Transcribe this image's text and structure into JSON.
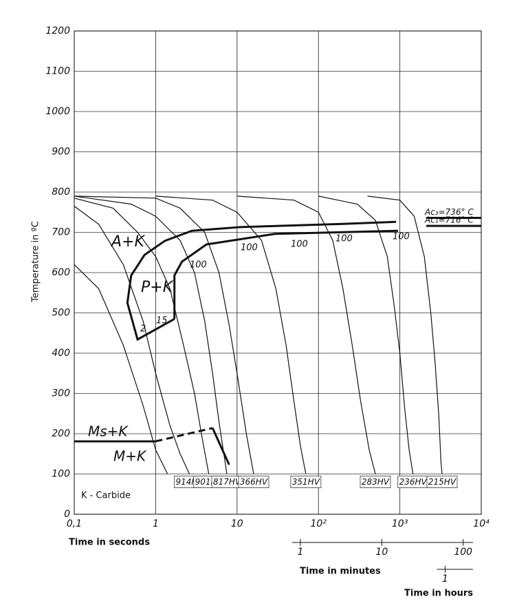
{
  "chart_data": {
    "type": "line",
    "ylabel": "Temperature in ºC",
    "xlabel": "Time in seconds",
    "log_x": true,
    "grid": true,
    "xlim": [
      0.1,
      10000
    ],
    "ylim": [
      0,
      1200
    ],
    "xticks": [
      {
        "value": 0.1,
        "label": "0,1"
      },
      1,
      10,
      {
        "value": 100,
        "label": "10²"
      },
      {
        "value": 1000,
        "label": "10³"
      },
      {
        "value": 10000,
        "label": "10⁴"
      }
    ],
    "yticks": [
      0,
      100,
      200,
      300,
      400,
      500,
      600,
      700,
      800,
      900,
      1000,
      1100,
      1200
    ],
    "minutes_axis": {
      "label": "Time in minutes",
      "ticks": [
        {
          "value": 60,
          "label": "1"
        },
        {
          "value": 600,
          "label": "10"
        },
        {
          "value": 6000,
          "label": "100"
        }
      ]
    },
    "hours_axis": {
      "label": "Time in hours",
      "ticks": [
        {
          "value": 3600,
          "label": "1"
        }
      ]
    },
    "color": "#111111",
    "series": [
      {
        "x": [
          0.1,
          0.2,
          0.4,
          0.7,
          1,
          1.4
        ],
        "values": [
          620,
          560,
          420,
          270,
          160,
          100
        ]
      },
      {
        "name": "914HV",
        "x": [
          0.1,
          0.2,
          0.4,
          0.7,
          1,
          1.5,
          2,
          2.6
        ],
        "values": [
          765,
          720,
          620,
          480,
          350,
          220,
          150,
          100
        ]
      },
      {
        "name": "901HV",
        "x": [
          0.1,
          0.3,
          0.6,
          1,
          1.5,
          2.2,
          3,
          3.8,
          4.5
        ],
        "values": [
          785,
          760,
          700,
          640,
          560,
          420,
          300,
          180,
          100
        ]
      },
      {
        "name": "817HV",
        "x": [
          0.1,
          0.5,
          1,
          2,
          3,
          4,
          5,
          6,
          7.5
        ],
        "values": [
          790,
          770,
          740,
          680,
          600,
          480,
          350,
          230,
          100
        ]
      },
      {
        "name": "366HV",
        "x": [
          0.1,
          1,
          2,
          4,
          6,
          8,
          10,
          13,
          16
        ],
        "values": [
          790,
          785,
          760,
          700,
          600,
          470,
          350,
          200,
          100
        ]
      },
      {
        "name": "351HV",
        "x": [
          1,
          5,
          10,
          20,
          30,
          40,
          50,
          60,
          70
        ],
        "values": [
          790,
          780,
          750,
          680,
          560,
          420,
          280,
          170,
          100
        ]
      },
      {
        "name": "283HV",
        "x": [
          10,
          50,
          100,
          150,
          200,
          260,
          330,
          420,
          500
        ],
        "values": [
          790,
          780,
          750,
          680,
          560,
          420,
          280,
          160,
          100
        ]
      },
      {
        "name": "236HV",
        "x": [
          100,
          300,
          500,
          700,
          850,
          1000,
          1150,
          1300,
          1450
        ],
        "values": [
          790,
          770,
          730,
          640,
          520,
          400,
          260,
          160,
          100
        ]
      },
      {
        "name": "215HV",
        "x": [
          400,
          1000,
          1500,
          2000,
          2400,
          2700,
          3000,
          3200,
          3300
        ],
        "values": [
          790,
          780,
          740,
          640,
          500,
          380,
          250,
          130,
          100
        ]
      }
    ],
    "phase_lines": [
      {
        "x": [
          1.7,
          0.6,
          0.45,
          0.5,
          0.73,
          1.3,
          2.8,
          11,
          200,
          900
        ],
        "values": [
          485,
          434,
          525,
          593,
          644,
          679,
          704,
          713,
          721,
          726
        ],
        "dashed": false
      },
      {
        "x": [
          1.7,
          1.7,
          2.1,
          4.2,
          29,
          950
        ],
        "values": [
          485,
          593,
          627,
          670,
          696,
          704
        ],
        "dashed": false
      },
      {
        "x": [
          0.1,
          1
        ],
        "values": [
          181,
          181
        ],
        "dashed": false
      },
      {
        "x": [
          1,
          5
        ],
        "values": [
          181,
          214
        ],
        "dashed": true
      },
      {
        "x": [
          5,
          8
        ],
        "values": [
          214,
          123
        ],
        "dashed": false
      }
    ],
    "reference_lines": [
      {
        "label": "Ac₃=736° C",
        "value": 736
      },
      {
        "label": "Ac₁=716° C",
        "value": 716
      }
    ],
    "annotations": [
      "A+K",
      "P+K",
      "Ms+K",
      "M+K",
      "K - Carbide",
      "2",
      "15",
      "100",
      "100",
      "100",
      "100",
      "100"
    ]
  }
}
